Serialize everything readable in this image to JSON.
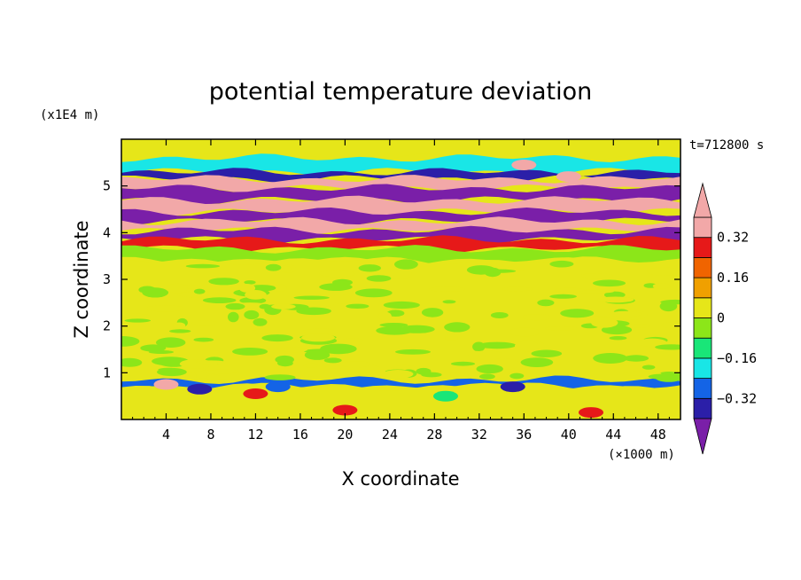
{
  "chart_data": {
    "type": "heatmap",
    "title": "potential temperature deviation",
    "xlabel": "X coordinate",
    "ylabel": "Z coordinate",
    "x_unit": "(×1000 m)",
    "y_unit": "(x1E4 m)",
    "time_label": "t=712800 s",
    "xlim": [
      0,
      50
    ],
    "ylim": [
      0,
      6
    ],
    "x_ticks": [
      4,
      8,
      12,
      16,
      20,
      24,
      28,
      32,
      36,
      40,
      44,
      48
    ],
    "y_ticks": [
      1,
      2,
      3,
      4,
      5
    ],
    "grid": false,
    "colorbar": {
      "placement": "right",
      "levels": [
        -0.4,
        -0.32,
        -0.24,
        -0.16,
        -0.08,
        0,
        0.08,
        0.16,
        0.24,
        0.32,
        0.4
      ],
      "colors": [
        "#7a1fa8",
        "#2b1fa8",
        "#1464e6",
        "#19e6e6",
        "#19e678",
        "#8ce619",
        "#e6e619",
        "#f0a000",
        "#f06400",
        "#e61919",
        "#f2a8a8"
      ],
      "tick_labels": [
        "0.32",
        "0.16",
        "0",
        "−0.16",
        "−0.32"
      ],
      "tick_values": [
        0.32,
        0.16,
        0,
        -0.16,
        -0.32
      ],
      "extend": "both"
    },
    "bands": [
      {
        "z0": 5.6,
        "z1": 6.0,
        "value": 0.04
      },
      {
        "z0": 5.3,
        "z1": 5.6,
        "value": -0.2
      },
      {
        "z0": 5.15,
        "z1": 5.3,
        "value": -0.35
      },
      {
        "z0": 4.95,
        "z1": 5.15,
        "value": 0.42
      },
      {
        "z0": 4.7,
        "z1": 4.95,
        "value": -0.42
      },
      {
        "z0": 4.45,
        "z1": 4.7,
        "value": 0.42
      },
      {
        "z0": 4.25,
        "z1": 4.45,
        "value": -0.42
      },
      {
        "z0": 4.05,
        "z1": 4.25,
        "value": 0.42
      },
      {
        "z0": 3.85,
        "z1": 4.05,
        "value": -0.42
      },
      {
        "z0": 3.65,
        "z1": 3.85,
        "value": 0.24
      },
      {
        "z0": 3.4,
        "z1": 3.65,
        "value": -0.05
      },
      {
        "z0": 0.85,
        "z1": 3.4,
        "value": 0.02
      },
      {
        "z0": 0.7,
        "z1": 0.85,
        "value": -0.3
      },
      {
        "z0": 0.0,
        "z1": 0.7,
        "value": 0.03
      }
    ],
    "features": [
      {
        "x": 4,
        "z": 0.75,
        "value": 0.42
      },
      {
        "x": 7,
        "z": 0.65,
        "value": -0.4
      },
      {
        "x": 12,
        "z": 0.55,
        "value": 0.3
      },
      {
        "x": 14,
        "z": 0.7,
        "value": -0.32
      },
      {
        "x": 20,
        "z": 0.2,
        "value": 0.24
      },
      {
        "x": 29,
        "z": 0.5,
        "value": -0.16
      },
      {
        "x": 35,
        "z": 0.7,
        "value": -0.4
      },
      {
        "x": 42,
        "z": 0.15,
        "value": 0.24
      },
      {
        "x": 36,
        "z": 5.45,
        "value": 0.42
      },
      {
        "x": 40,
        "z": 5.2,
        "value": 0.42
      }
    ]
  }
}
